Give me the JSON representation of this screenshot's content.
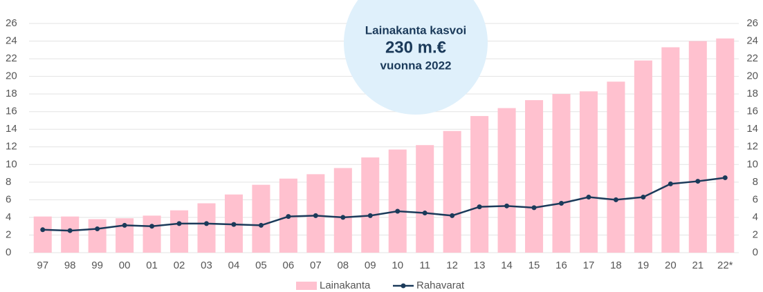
{
  "chart_data": {
    "type": "bar_line",
    "annotation": [
      "Lainakanta kasvoi",
      "230 m.€",
      "vuonna 2022"
    ],
    "categories": [
      "97",
      "98",
      "99",
      "00",
      "01",
      "02",
      "03",
      "04",
      "05",
      "06",
      "07",
      "08",
      "09",
      "10",
      "11",
      "12",
      "13",
      "14",
      "15",
      "16",
      "17",
      "18",
      "19",
      "20",
      "21",
      "22*"
    ],
    "series": [
      {
        "name": "Lainakanta",
        "type": "bar",
        "color": "#ffc1cf",
        "values": [
          4.1,
          4.1,
          3.8,
          3.9,
          4.2,
          4.8,
          5.6,
          6.6,
          7.7,
          8.4,
          8.9,
          9.6,
          10.8,
          11.7,
          12.2,
          13.8,
          15.5,
          16.4,
          17.3,
          18.0,
          18.3,
          19.4,
          21.8,
          23.3,
          24.0,
          24.3
        ]
      },
      {
        "name": "Rahavarat",
        "type": "line",
        "color": "#1b3a5a",
        "axis": "y2",
        "values": [
          2.6,
          2.5,
          2.7,
          3.1,
          3.0,
          3.3,
          3.3,
          3.2,
          3.1,
          4.1,
          4.2,
          4.0,
          4.2,
          4.7,
          4.5,
          4.2,
          5.2,
          5.3,
          5.1,
          5.6,
          6.3,
          6.0,
          6.3,
          7.8,
          8.1,
          8.5
        ]
      }
    ],
    "ylim": [
      0,
      26
    ],
    "yticks": [
      0,
      2,
      4,
      6,
      8,
      10,
      12,
      14,
      16,
      18,
      20,
      22,
      24,
      26
    ],
    "y2lim": [
      0,
      26
    ],
    "y2ticks": [
      0,
      2,
      4,
      6,
      8,
      10,
      12,
      14,
      16,
      18,
      20,
      22,
      24,
      26
    ],
    "grid": true,
    "legend": "bottom"
  }
}
